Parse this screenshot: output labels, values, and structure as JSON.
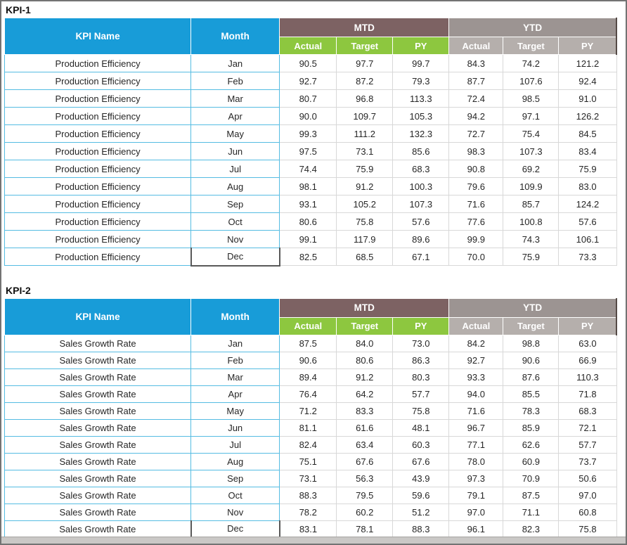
{
  "window": {
    "frame_color": "#737373",
    "bottom_bar_color": "#cac8c6",
    "background": "#ffffff"
  },
  "colors": {
    "header_blue": "#189CD8",
    "mtd_brown": "#7D6263",
    "ytd_gray": "#9C9492",
    "sub_green": "#8DC73F",
    "sub_gray": "#B5AFAC",
    "border_cyan": "#55BCE2",
    "border_light_gray": "#D8D8D8",
    "selected_cell_border": "#595959",
    "text_dark": "#262626"
  },
  "tables": [
    {
      "section_label": "KPI-1",
      "kpi_name": "Production Efficiency",
      "headers": {
        "kpi_name": "KPI Name",
        "month": "Month",
        "group_mtd": "MTD",
        "group_ytd": "YTD",
        "sub": [
          "Actual",
          "Target",
          "PY"
        ]
      },
      "rows": [
        {
          "month": "Jan",
          "values": [
            "90.5",
            "97.7",
            "99.7",
            "84.3",
            "74.2",
            "121.2"
          ]
        },
        {
          "month": "Feb",
          "values": [
            "92.7",
            "87.2",
            "79.3",
            "87.7",
            "107.6",
            "92.4"
          ]
        },
        {
          "month": "Mar",
          "values": [
            "80.7",
            "96.8",
            "113.3",
            "72.4",
            "98.5",
            "91.0"
          ]
        },
        {
          "month": "Apr",
          "values": [
            "90.0",
            "109.7",
            "105.3",
            "94.2",
            "97.1",
            "126.2"
          ]
        },
        {
          "month": "May",
          "values": [
            "99.3",
            "111.2",
            "132.3",
            "72.7",
            "75.4",
            "84.5"
          ]
        },
        {
          "month": "Jun",
          "values": [
            "97.5",
            "73.1",
            "85.6",
            "98.3",
            "107.3",
            "83.4"
          ]
        },
        {
          "month": "Jul",
          "values": [
            "74.4",
            "75.9",
            "68.3",
            "90.8",
            "69.2",
            "75.9"
          ]
        },
        {
          "month": "Aug",
          "values": [
            "98.1",
            "91.2",
            "100.3",
            "79.6",
            "109.9",
            "83.0"
          ]
        },
        {
          "month": "Sep",
          "values": [
            "93.1",
            "105.2",
            "107.3",
            "71.6",
            "85.7",
            "124.2"
          ]
        },
        {
          "month": "Oct",
          "values": [
            "80.6",
            "75.8",
            "57.6",
            "77.6",
            "100.8",
            "57.6"
          ]
        },
        {
          "month": "Nov",
          "values": [
            "99.1",
            "117.9",
            "89.6",
            "99.9",
            "74.3",
            "106.1"
          ]
        },
        {
          "month": "Dec",
          "values": [
            "82.5",
            "68.5",
            "67.1",
            "70.0",
            "75.9",
            "73.3"
          ]
        }
      ]
    },
    {
      "section_label": "KPI-2",
      "kpi_name": "Sales Growth Rate",
      "headers": {
        "kpi_name": "KPI Name",
        "month": "Month",
        "group_mtd": "MTD",
        "group_ytd": "YTD",
        "sub": [
          "Actual",
          "Target",
          "PY"
        ]
      },
      "rows": [
        {
          "month": "Jan",
          "values": [
            "87.5",
            "84.0",
            "73.0",
            "84.2",
            "98.8",
            "63.0"
          ]
        },
        {
          "month": "Feb",
          "values": [
            "90.6",
            "80.6",
            "86.3",
            "92.7",
            "90.6",
            "66.9"
          ]
        },
        {
          "month": "Mar",
          "values": [
            "89.4",
            "91.2",
            "80.3",
            "93.3",
            "87.6",
            "110.3"
          ]
        },
        {
          "month": "Apr",
          "values": [
            "76.4",
            "64.2",
            "57.7",
            "94.0",
            "85.5",
            "71.8"
          ]
        },
        {
          "month": "May",
          "values": [
            "71.2",
            "83.3",
            "75.8",
            "71.6",
            "78.3",
            "68.3"
          ]
        },
        {
          "month": "Jun",
          "values": [
            "81.1",
            "61.6",
            "48.1",
            "96.7",
            "85.9",
            "72.1"
          ]
        },
        {
          "month": "Jul",
          "values": [
            "82.4",
            "63.4",
            "60.3",
            "77.1",
            "62.6",
            "57.7"
          ]
        },
        {
          "month": "Aug",
          "values": [
            "75.1",
            "67.6",
            "67.6",
            "78.0",
            "60.9",
            "73.7"
          ]
        },
        {
          "month": "Sep",
          "values": [
            "73.1",
            "56.3",
            "43.9",
            "97.3",
            "70.9",
            "50.6"
          ]
        },
        {
          "month": "Oct",
          "values": [
            "88.3",
            "79.5",
            "59.6",
            "79.1",
            "87.5",
            "97.0"
          ]
        },
        {
          "month": "Nov",
          "values": [
            "78.2",
            "60.2",
            "51.2",
            "97.0",
            "71.1",
            "60.8"
          ]
        },
        {
          "month": "Dec",
          "values": [
            "83.1",
            "78.1",
            "88.3",
            "96.1",
            "82.3",
            "75.8"
          ]
        }
      ]
    }
  ]
}
